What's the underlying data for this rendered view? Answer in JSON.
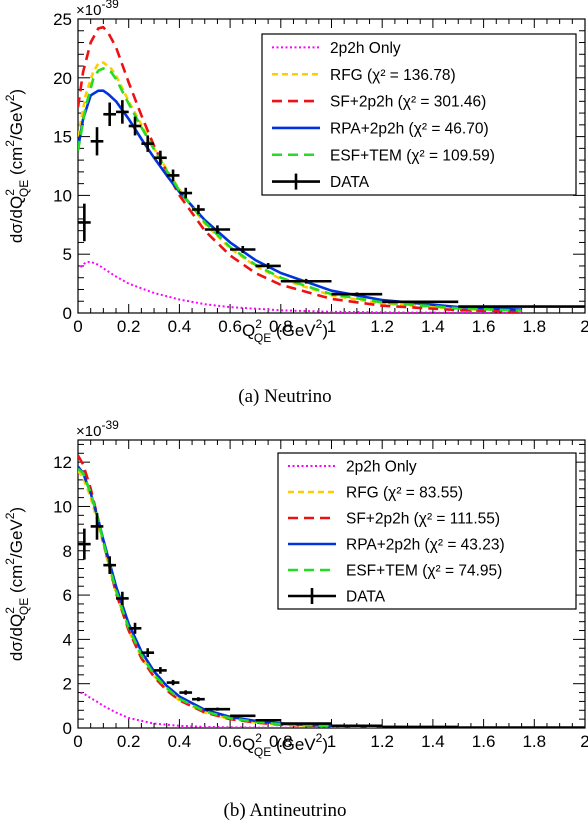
{
  "chart_data": [
    {
      "type": "line",
      "caption": "(a) Neutrino",
      "multiplier": "×10",
      "multiplier_exp": "-39",
      "xlabel": {
        "main": "Q",
        "sup": "2",
        "sub": "QE",
        "unit": " (GeV",
        "unit_sup": "2",
        "close": ")"
      },
      "ylabel": {
        "main": "dσ/dQ",
        "sup": "2",
        "sub": "QE",
        "unit": " (cm",
        "unit_sup": "2",
        "mid": "/GeV",
        "mid_sup": "2",
        "close": ")"
      },
      "xlim": [
        0,
        2
      ],
      "ylim": [
        0,
        25
      ],
      "xticks": [
        0,
        0.2,
        0.4,
        0.6,
        0.8,
        1,
        1.2,
        1.4,
        1.6,
        1.8,
        2
      ],
      "xtick_labels": [
        "0",
        "0.2",
        "0.4",
        "0.6",
        "0.8",
        "1",
        "1.2",
        "1.4",
        "1.6",
        "1.8",
        "2"
      ],
      "yticks": [
        0,
        5,
        10,
        15,
        20,
        25
      ],
      "ytick_labels": [
        "0",
        "5",
        "10",
        "15",
        "20",
        "25"
      ],
      "legend": "top-right",
      "series": [
        {
          "name": "2p2h Only",
          "color": "#ff00ff",
          "style": "dot",
          "x": [
            0.01,
            0.03,
            0.05,
            0.08,
            0.1,
            0.15,
            0.2,
            0.3,
            0.4,
            0.5,
            0.6,
            0.8,
            1.0,
            1.2,
            1.5,
            1.75
          ],
          "y": [
            3.9,
            4.3,
            4.35,
            4.1,
            3.8,
            3.1,
            2.5,
            1.7,
            1.15,
            0.75,
            0.5,
            0.23,
            0.1,
            0.05,
            0.02,
            0.01
          ]
        },
        {
          "name": "RFG (χ² = 136.78)",
          "color": "#ffcc00",
          "style": "dash-fine",
          "x": [
            0.0,
            0.03,
            0.06,
            0.08,
            0.1,
            0.13,
            0.15,
            0.2,
            0.25,
            0.3,
            0.35,
            0.4,
            0.5,
            0.6,
            0.7,
            0.8,
            1.0,
            1.2,
            1.5,
            1.75
          ],
          "y": [
            15,
            18.5,
            20.5,
            21.2,
            21.3,
            20.8,
            20.2,
            18.0,
            16.0,
            14.0,
            12.2,
            10.5,
            7.6,
            5.5,
            4.0,
            2.9,
            1.5,
            0.8,
            0.35,
            0.18
          ]
        },
        {
          "name": "SF+2p2h (χ² = 301.46)",
          "color": "#ee1111",
          "style": "dash",
          "x": [
            0.0,
            0.02,
            0.05,
            0.08,
            0.1,
            0.12,
            0.15,
            0.2,
            0.25,
            0.3,
            0.35,
            0.4,
            0.5,
            0.6,
            0.7,
            0.8,
            1.0,
            1.2,
            1.5,
            1.75
          ],
          "y": [
            17.5,
            20.5,
            23.0,
            24.2,
            24.3,
            23.8,
            22.6,
            19.6,
            16.8,
            14.2,
            12.0,
            10.0,
            7.0,
            4.9,
            3.4,
            2.4,
            1.2,
            0.62,
            0.25,
            0.1
          ]
        },
        {
          "name": "RPA+2p2h (χ² = 46.70)",
          "color": "#0033dd",
          "style": "solid",
          "x": [
            0.0,
            0.02,
            0.05,
            0.08,
            0.1,
            0.12,
            0.15,
            0.2,
            0.25,
            0.3,
            0.35,
            0.4,
            0.5,
            0.6,
            0.7,
            0.8,
            1.0,
            1.2,
            1.5,
            1.75
          ],
          "y": [
            14.0,
            16.5,
            18.5,
            18.9,
            18.9,
            18.6,
            18.0,
            16.5,
            14.8,
            13.2,
            11.7,
            10.3,
            7.9,
            6.0,
            4.5,
            3.4,
            1.9,
            1.1,
            0.5,
            0.28
          ]
        },
        {
          "name": "ESF+TEM (χ² = 109.59)",
          "color": "#22dd22",
          "style": "dash",
          "x": [
            0.0,
            0.03,
            0.06,
            0.08,
            0.1,
            0.13,
            0.15,
            0.2,
            0.25,
            0.3,
            0.35,
            0.4,
            0.5,
            0.6,
            0.7,
            0.8,
            1.0,
            1.2,
            1.5,
            1.75
          ],
          "y": [
            13.8,
            17.5,
            19.9,
            20.6,
            20.8,
            20.5,
            19.9,
            17.8,
            15.8,
            13.9,
            12.1,
            10.4,
            7.7,
            5.6,
            4.1,
            3.0,
            1.6,
            0.9,
            0.4,
            0.2
          ]
        },
        {
          "name": "DATA",
          "color": "#000000",
          "style": "points",
          "points": [
            {
              "x": 0.025,
              "y": 7.7,
              "xl": 0.0,
              "xh": 0.05,
              "yerr": 1.6
            },
            {
              "x": 0.075,
              "y": 14.6,
              "xl": 0.05,
              "xh": 0.1,
              "yerr": 1.2
            },
            {
              "x": 0.125,
              "y": 16.9,
              "xl": 0.1,
              "xh": 0.15,
              "yerr": 1.0
            },
            {
              "x": 0.175,
              "y": 17.1,
              "xl": 0.15,
              "xh": 0.2,
              "yerr": 1.0
            },
            {
              "x": 0.225,
              "y": 15.9,
              "xl": 0.2,
              "xh": 0.25,
              "yerr": 0.8
            },
            {
              "x": 0.275,
              "y": 14.4,
              "xl": 0.25,
              "xh": 0.3,
              "yerr": 0.7
            },
            {
              "x": 0.325,
              "y": 13.2,
              "xl": 0.3,
              "xh": 0.35,
              "yerr": 0.6
            },
            {
              "x": 0.375,
              "y": 11.7,
              "xl": 0.35,
              "xh": 0.4,
              "yerr": 0.5
            },
            {
              "x": 0.425,
              "y": 10.2,
              "xl": 0.4,
              "xh": 0.45,
              "yerr": 0.45
            },
            {
              "x": 0.475,
              "y": 8.8,
              "xl": 0.45,
              "xh": 0.5,
              "yerr": 0.4
            },
            {
              "x": 0.55,
              "y": 7.1,
              "xl": 0.5,
              "xh": 0.6,
              "yerr": 0.35
            },
            {
              "x": 0.65,
              "y": 5.4,
              "xl": 0.6,
              "xh": 0.7,
              "yerr": 0.3
            },
            {
              "x": 0.75,
              "y": 4.0,
              "xl": 0.7,
              "xh": 0.8,
              "yerr": 0.25
            },
            {
              "x": 0.9,
              "y": 2.7,
              "xl": 0.8,
              "xh": 1.0,
              "yerr": 0.2
            },
            {
              "x": 1.1,
              "y": 1.6,
              "xl": 1.0,
              "xh": 1.2,
              "yerr": 0.15
            },
            {
              "x": 1.35,
              "y": 0.95,
              "xl": 1.2,
              "xh": 1.5,
              "yerr": 0.1
            },
            {
              "x": 1.75,
              "y": 0.55,
              "xl": 1.5,
              "xh": 2.0,
              "yerr": 0.08
            }
          ]
        }
      ]
    },
    {
      "type": "line",
      "caption": "(b) Antineutrino",
      "multiplier": "×10",
      "multiplier_exp": "-39",
      "xlabel": {
        "main": "Q",
        "sup": "2",
        "sub": "QE",
        "unit": " (GeV",
        "unit_sup": "2",
        "close": ")"
      },
      "ylabel": {
        "main": "dσ/dQ",
        "sup": "2",
        "sub": "QE",
        "unit": " (cm",
        "unit_sup": "2",
        "mid": "/GeV",
        "mid_sup": "2",
        "close": ")"
      },
      "xlim": [
        0,
        2
      ],
      "ylim": [
        0,
        13
      ],
      "xticks": [
        0,
        0.2,
        0.4,
        0.6,
        0.8,
        1,
        1.2,
        1.4,
        1.6,
        1.8,
        2
      ],
      "xtick_labels": [
        "0",
        "0.2",
        "0.4",
        "0.6",
        "0.8",
        "1",
        "1.2",
        "1.4",
        "1.6",
        "1.8",
        "2"
      ],
      "yticks": [
        0,
        2,
        4,
        6,
        8,
        10,
        12
      ],
      "ytick_labels": [
        "0",
        "2",
        "4",
        "6",
        "8",
        "10",
        "12"
      ],
      "legend": "top-right",
      "series": [
        {
          "name": "2p2h Only",
          "color": "#ff00ff",
          "style": "dot",
          "x": [
            0.01,
            0.03,
            0.05,
            0.08,
            0.1,
            0.15,
            0.2,
            0.3,
            0.4,
            0.5,
            0.6,
            0.8,
            1.0,
            1.2
          ],
          "y": [
            1.6,
            1.5,
            1.35,
            1.15,
            1.0,
            0.7,
            0.45,
            0.2,
            0.1,
            0.05,
            0.03,
            0.01,
            0.005,
            0.0
          ]
        },
        {
          "name": "RFG (χ² = 83.55)",
          "color": "#ffcc00",
          "style": "dash-fine",
          "x": [
            0.0,
            0.02,
            0.05,
            0.08,
            0.1,
            0.15,
            0.2,
            0.25,
            0.3,
            0.35,
            0.4,
            0.5,
            0.6,
            0.7,
            0.8,
            1.0,
            1.2,
            1.5
          ],
          "y": [
            11.6,
            11.3,
            10.4,
            9.2,
            8.3,
            6.1,
            4.4,
            3.2,
            2.35,
            1.7,
            1.25,
            0.7,
            0.4,
            0.25,
            0.15,
            0.07,
            0.03,
            0.01
          ]
        },
        {
          "name": "SF+2p2h (χ² = 111.55)",
          "color": "#ee1111",
          "style": "dash",
          "x": [
            0.0,
            0.02,
            0.05,
            0.08,
            0.1,
            0.15,
            0.2,
            0.25,
            0.3,
            0.35,
            0.4,
            0.5,
            0.6,
            0.7,
            0.8,
            1.0,
            1.2,
            1.5
          ],
          "y": [
            12.3,
            11.9,
            10.8,
            9.4,
            8.4,
            6.1,
            4.4,
            3.15,
            2.3,
            1.7,
            1.25,
            0.7,
            0.4,
            0.25,
            0.15,
            0.07,
            0.03,
            0.01
          ]
        },
        {
          "name": "RPA+2p2h (χ² = 43.23)",
          "color": "#0033dd",
          "style": "solid",
          "x": [
            0.0,
            0.02,
            0.05,
            0.08,
            0.1,
            0.15,
            0.2,
            0.25,
            0.3,
            0.35,
            0.4,
            0.5,
            0.6,
            0.7,
            0.8,
            1.0,
            1.2,
            1.5
          ],
          "y": [
            11.8,
            11.5,
            10.6,
            9.4,
            8.5,
            6.4,
            4.7,
            3.45,
            2.55,
            1.9,
            1.42,
            0.82,
            0.5,
            0.32,
            0.2,
            0.09,
            0.04,
            0.015
          ]
        },
        {
          "name": "ESF+TEM (χ² = 74.95)",
          "color": "#22dd22",
          "style": "dash",
          "x": [
            0.0,
            0.02,
            0.05,
            0.08,
            0.1,
            0.15,
            0.2,
            0.25,
            0.3,
            0.35,
            0.4,
            0.5,
            0.6,
            0.7,
            0.8,
            1.0,
            1.2,
            1.5
          ],
          "y": [
            11.7,
            11.5,
            10.6,
            9.4,
            8.4,
            6.2,
            4.5,
            3.3,
            2.4,
            1.8,
            1.32,
            0.75,
            0.44,
            0.28,
            0.17,
            0.08,
            0.035,
            0.01
          ]
        },
        {
          "name": "DATA",
          "color": "#000000",
          "style": "points",
          "points": [
            {
              "x": 0.025,
              "y": 8.3,
              "xl": 0.0,
              "xh": 0.05,
              "yerr": 0.7
            },
            {
              "x": 0.075,
              "y": 9.1,
              "xl": 0.05,
              "xh": 0.1,
              "yerr": 0.6
            },
            {
              "x": 0.125,
              "y": 7.35,
              "xl": 0.1,
              "xh": 0.15,
              "yerr": 0.4
            },
            {
              "x": 0.175,
              "y": 5.85,
              "xl": 0.15,
              "xh": 0.2,
              "yerr": 0.3
            },
            {
              "x": 0.225,
              "y": 4.5,
              "xl": 0.2,
              "xh": 0.25,
              "yerr": 0.25
            },
            {
              "x": 0.275,
              "y": 3.4,
              "xl": 0.25,
              "xh": 0.3,
              "yerr": 0.2
            },
            {
              "x": 0.325,
              "y": 2.6,
              "xl": 0.3,
              "xh": 0.35,
              "yerr": 0.15
            },
            {
              "x": 0.375,
              "y": 2.05,
              "xl": 0.35,
              "xh": 0.4,
              "yerr": 0.12
            },
            {
              "x": 0.425,
              "y": 1.6,
              "xl": 0.4,
              "xh": 0.45,
              "yerr": 0.1
            },
            {
              "x": 0.475,
              "y": 1.3,
              "xl": 0.45,
              "xh": 0.5,
              "yerr": 0.09
            },
            {
              "x": 0.55,
              "y": 0.85,
              "xl": 0.5,
              "xh": 0.6,
              "yerr": 0.07
            },
            {
              "x": 0.65,
              "y": 0.55,
              "xl": 0.6,
              "xh": 0.7,
              "yerr": 0.05
            },
            {
              "x": 0.75,
              "y": 0.35,
              "xl": 0.7,
              "xh": 0.8,
              "yerr": 0.04
            },
            {
              "x": 0.9,
              "y": 0.2,
              "xl": 0.8,
              "xh": 1.0,
              "yerr": 0.03
            },
            {
              "x": 1.1,
              "y": 0.1,
              "xl": 1.0,
              "xh": 1.2,
              "yerr": 0.02
            },
            {
              "x": 1.35,
              "y": 0.05,
              "xl": 1.2,
              "xh": 1.5,
              "yerr": 0.01
            },
            {
              "x": 1.75,
              "y": 0.02,
              "xl": 1.5,
              "xh": 2.0,
              "yerr": 0.01
            }
          ]
        }
      ]
    }
  ]
}
